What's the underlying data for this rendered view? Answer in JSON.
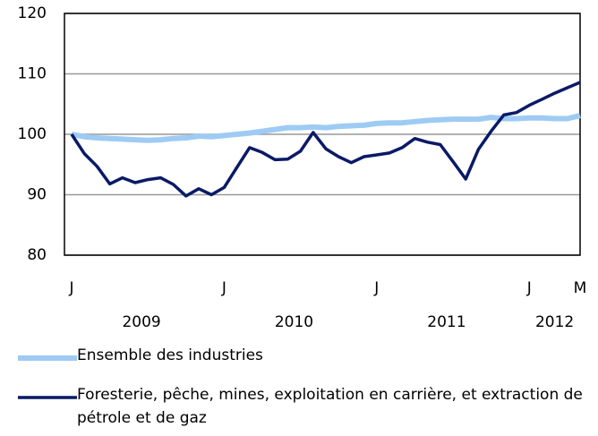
{
  "chart_data": {
    "type": "line",
    "categories": [
      "J",
      null,
      null,
      null,
      null,
      null,
      null,
      null,
      null,
      null,
      null,
      null,
      "J",
      null,
      null,
      null,
      null,
      null,
      null,
      null,
      null,
      null,
      null,
      null,
      "J",
      null,
      null,
      null,
      null,
      null,
      null,
      null,
      null,
      null,
      null,
      null,
      "J",
      null,
      null,
      null,
      "M"
    ],
    "category_groups": [
      "2009",
      "2010",
      "2011",
      "2012"
    ],
    "ylim": [
      80,
      120
    ],
    "yticks": [
      80,
      90,
      100,
      110,
      120
    ],
    "grid": true,
    "series": [
      {
        "name": "Ensemble des industries",
        "color": "#9ecbf4",
        "values": [
          100,
          99.6,
          99.4,
          99.3,
          99.2,
          99.1,
          99.0,
          99.1,
          99.3,
          99.4,
          99.7,
          99.6,
          99.8,
          100.0,
          100.2,
          100.5,
          100.8,
          101.1,
          101.1,
          101.2,
          101.1,
          101.3,
          101.4,
          101.5,
          101.8,
          101.9,
          101.9,
          102.1,
          102.3,
          102.4,
          102.5,
          102.5,
          102.5,
          102.8,
          102.6,
          102.6,
          102.7,
          102.7,
          102.6,
          102.6,
          103.1
        ]
      },
      {
        "name": "Foresterie, pêche, mines, exploitation en carrière, et extraction de pétrole et de gaz",
        "color": "#0a1a66",
        "values": [
          100,
          96.8,
          94.7,
          91.8,
          92.8,
          92.0,
          92.5,
          92.8,
          91.7,
          89.8,
          91.0,
          90.0,
          91.2,
          94.5,
          97.8,
          97.0,
          95.8,
          95.9,
          97.2,
          100.3,
          97.6,
          96.3,
          95.3,
          96.3,
          96.6,
          96.9,
          97.8,
          99.3,
          98.7,
          98.3,
          95.5,
          92.6,
          97.5,
          100.5,
          103.2,
          103.6,
          104.8,
          105.8,
          106.8,
          107.7,
          108.6
        ]
      }
    ]
  }
}
